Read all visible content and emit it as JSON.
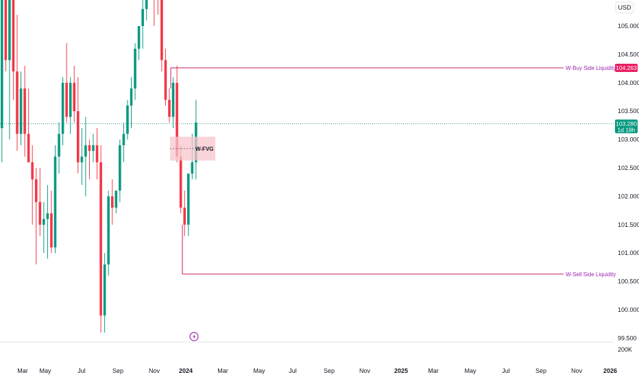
{
  "toolbar": {
    "currency_label": "USD"
  },
  "colors": {
    "up": "#089981",
    "down": "#f23645",
    "liquidity": "#c2185b",
    "fvg_fill": "#f7c6cc",
    "price_line": "#089981",
    "label_text": "#9c27b0"
  },
  "chart_data": {
    "type": "candlestick",
    "y_ticks": [
      "105.000",
      "104.500",
      "104.000",
      "103.500",
      "103.000",
      "102.500",
      "102.000",
      "101.500",
      "101.000",
      "100.500",
      "100.000",
      "99.500"
    ],
    "ylim": [
      99.4,
      105.9
    ],
    "x_ticks": [
      {
        "label": "Mar",
        "bold": false
      },
      {
        "label": "May",
        "bold": false
      },
      {
        "label": "Jul",
        "bold": false
      },
      {
        "label": "Sep",
        "bold": false
      },
      {
        "label": "Nov",
        "bold": false
      },
      {
        "label": "2024",
        "bold": true
      },
      {
        "label": "Mar",
        "bold": false
      },
      {
        "label": "May",
        "bold": false
      },
      {
        "label": "Jul",
        "bold": false
      },
      {
        "label": "Sep",
        "bold": false
      },
      {
        "label": "Nov",
        "bold": false
      },
      {
        "label": "2025",
        "bold": true
      },
      {
        "label": "Mar",
        "bold": false
      },
      {
        "label": "May",
        "bold": false
      },
      {
        "label": "Jul",
        "bold": false
      },
      {
        "label": "Sep",
        "bold": false
      },
      {
        "label": "Nov",
        "bold": false
      },
      {
        "label": "2026",
        "bold": true
      }
    ],
    "volume_label": "200K",
    "candles": [
      [
        103.2,
        105.7,
        102.6,
        105.5
      ],
      [
        105.5,
        105.8,
        104.2,
        104.4
      ],
      [
        104.4,
        105.8,
        103.0,
        105.6
      ],
      [
        105.6,
        105.9,
        103.7,
        104.2
      ],
      [
        104.2,
        105.2,
        102.8,
        103.1
      ],
      [
        103.1,
        104.2,
        102.9,
        103.9
      ],
      [
        103.9,
        104.3,
        102.7,
        103.1
      ],
      [
        103.1,
        103.9,
        102.6,
        102.6
      ],
      [
        102.6,
        102.9,
        101.5,
        102.3
      ],
      [
        102.3,
        102.5,
        100.8,
        101.9
      ],
      [
        101.9,
        102.5,
        101.3,
        101.5
      ],
      [
        101.5,
        101.9,
        101.0,
        101.6
      ],
      [
        101.6,
        102.2,
        100.9,
        101.7
      ],
      [
        101.7,
        102.1,
        101.0,
        101.1
      ],
      [
        101.1,
        102.9,
        101.0,
        102.7
      ],
      [
        102.7,
        103.3,
        102.4,
        103.1
      ],
      [
        103.1,
        104.1,
        102.9,
        104.0
      ],
      [
        104.0,
        104.7,
        103.3,
        103.4
      ],
      [
        103.4,
        104.1,
        103.1,
        104.0
      ],
      [
        104.0,
        104.3,
        103.3,
        103.5
      ],
      [
        103.5,
        104.1,
        102.4,
        102.6
      ],
      [
        102.6,
        103.2,
        102.2,
        102.7
      ],
      [
        102.7,
        103.4,
        102.0,
        102.9
      ],
      [
        102.9,
        103.0,
        102.3,
        102.8
      ],
      [
        102.8,
        103.1,
        102.6,
        102.9
      ],
      [
        102.9,
        103.2,
        102.3,
        102.6
      ],
      [
        102.6,
        102.9,
        99.6,
        99.9
      ],
      [
        99.9,
        101.0,
        99.6,
        100.8
      ],
      [
        100.8,
        102.1,
        100.6,
        102.0
      ],
      [
        102.0,
        102.3,
        101.5,
        101.8
      ],
      [
        101.8,
        102.1,
        101.7,
        102.1
      ],
      [
        102.1,
        103.0,
        101.9,
        102.9
      ],
      [
        102.9,
        103.3,
        102.6,
        103.1
      ],
      [
        103.1,
        103.7,
        103.0,
        103.6
      ],
      [
        103.6,
        104.1,
        103.2,
        103.9
      ],
      [
        103.9,
        104.7,
        103.7,
        104.6
      ],
      [
        104.6,
        105.0,
        104.4,
        105.0
      ],
      [
        105.0,
        105.5,
        104.6,
        105.3
      ],
      [
        105.3,
        105.9,
        105.1,
        105.8
      ],
      [
        105.8,
        105.9,
        105.6,
        105.9
      ],
      [
        105.9,
        105.95,
        105.0,
        105.7
      ],
      [
        105.7,
        105.95,
        105.2,
        105.5
      ],
      [
        105.5,
        105.9,
        104.2,
        104.4
      ],
      [
        104.4,
        104.6,
        103.6,
        103.7
      ],
      [
        103.7,
        103.9,
        103.3,
        103.4
      ],
      [
        103.4,
        104.1,
        103.2,
        104.0
      ],
      [
        104.0,
        104.3,
        102.6,
        102.7
      ],
      [
        102.7,
        102.9,
        101.7,
        101.8
      ],
      [
        101.8,
        102.1,
        101.3,
        101.5
      ],
      [
        101.5,
        102.4,
        101.3,
        102.4
      ],
      [
        102.4,
        103.1,
        102.3,
        102.6
      ],
      [
        102.6,
        103.7,
        102.3,
        103.3
      ]
    ],
    "current_price": "103.280",
    "countdown": "1d 19h",
    "buy_side": {
      "label": "W-Buy Side Liquidity",
      "price": 104.263,
      "price_label": "104.263"
    },
    "sell_side": {
      "label": "W-Sell Side Liquidity",
      "price": 100.63
    },
    "fvg": {
      "label": "W-FVG",
      "top": 103.05,
      "bottom": 102.63
    }
  }
}
